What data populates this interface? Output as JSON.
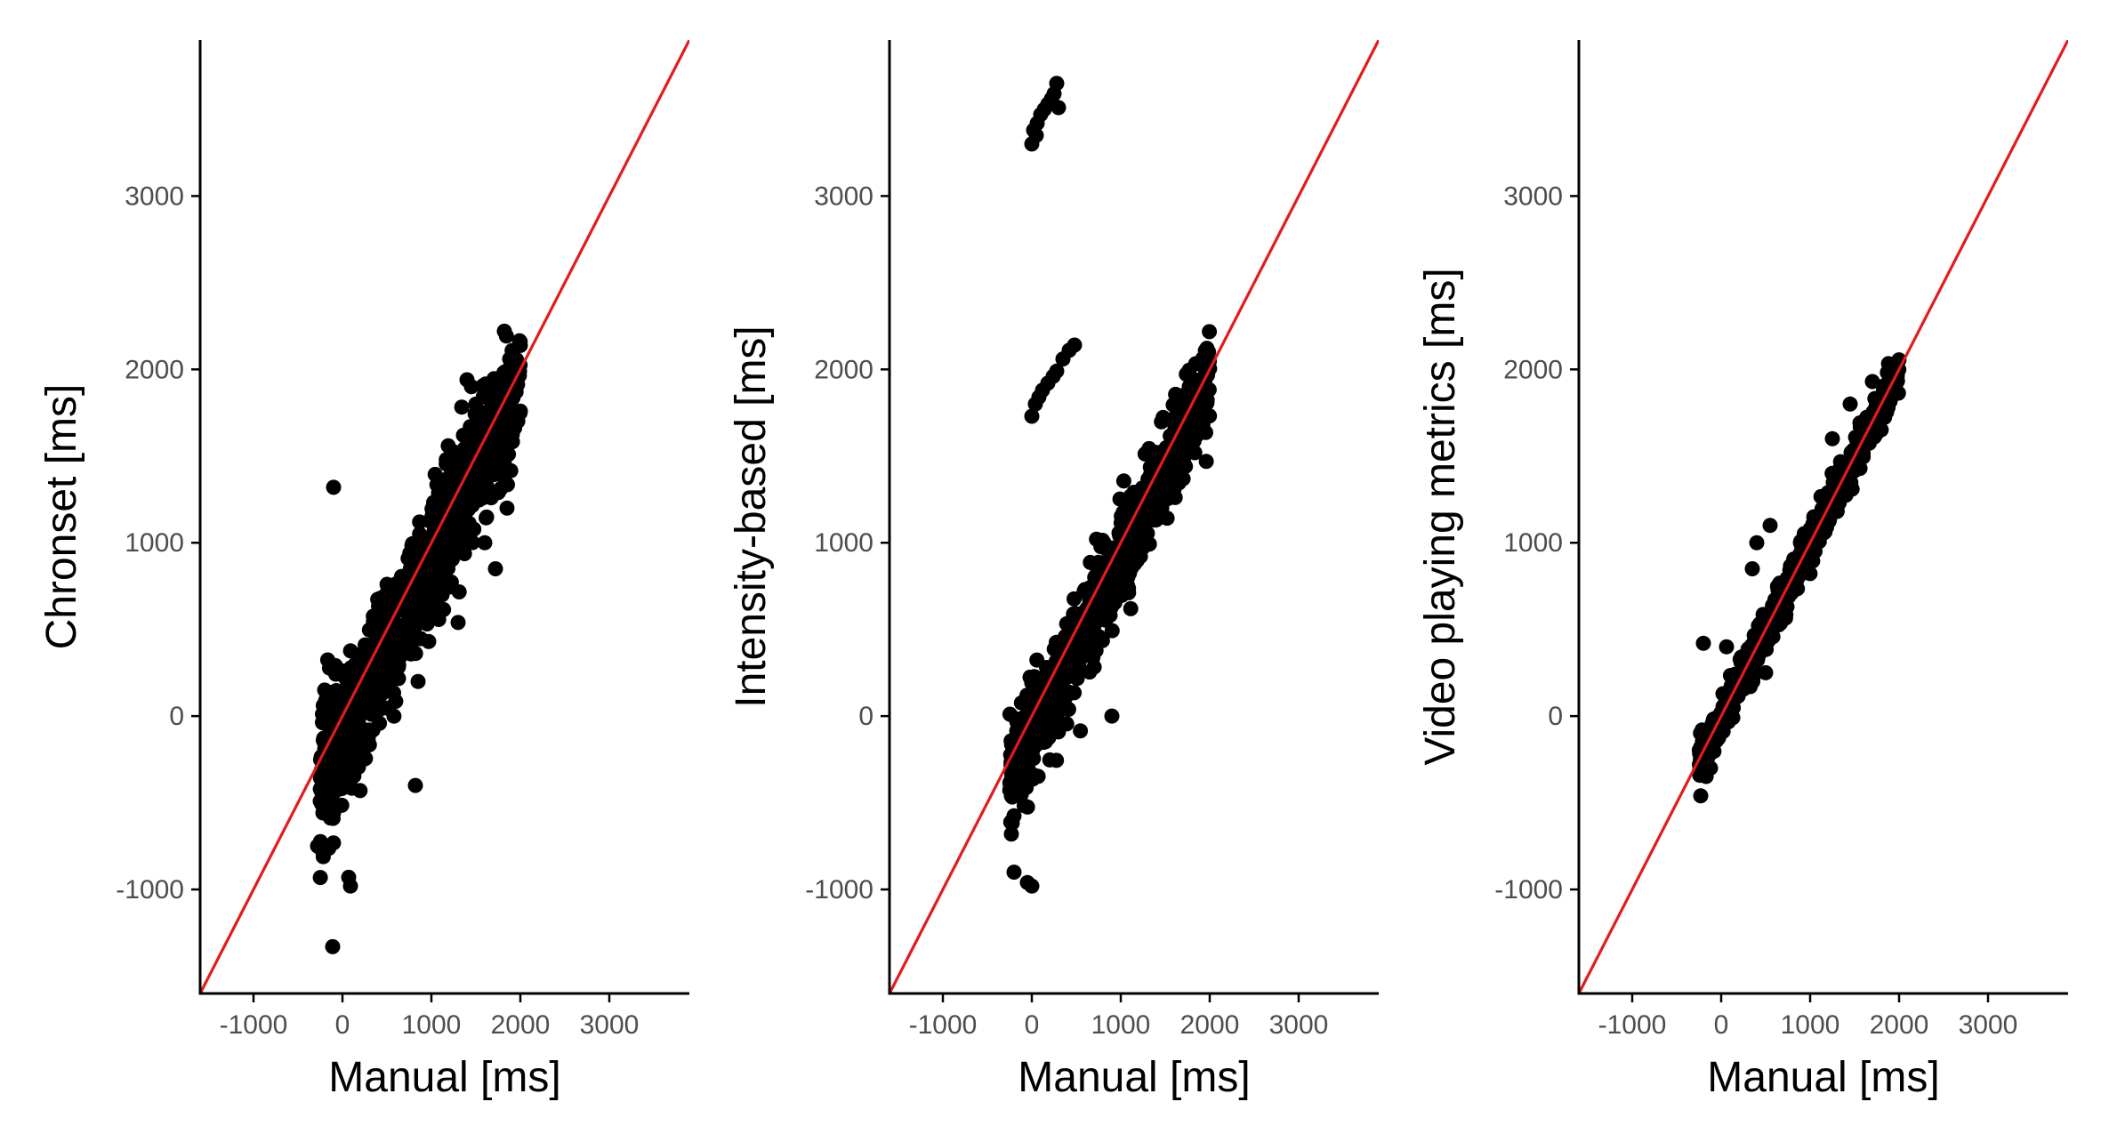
{
  "colors": {
    "points": "#000000",
    "reference_line": "#e41a1c",
    "axis": "#000000",
    "tick_text": "#4d4d4d"
  },
  "chart_data": [
    {
      "type": "scatter",
      "xlabel": "Manual [ms]",
      "ylabel": "Chronset [ms]",
      "xlim": [
        -1600,
        3900
      ],
      "ylim": [
        -1600,
        3900
      ],
      "xticks": [
        -1000,
        0,
        1000,
        2000,
        3000
      ],
      "yticks": [
        -1000,
        0,
        1000,
        2000,
        3000
      ],
      "reference_line": "y = x",
      "grid": false,
      "seed": 11,
      "bulk": {
        "n": 900,
        "x_range": [
          -250,
          2000
        ],
        "slope": 1.0,
        "offset": -60,
        "sd": 180,
        "neg_skew": 260
      },
      "points": [
        [
          -100,
          1320
        ],
        [
          1820,
          2220
        ],
        [
          1880,
          2060
        ],
        [
          -110,
          -1330
        ],
        [
          90,
          -980
        ],
        [
          70,
          -930
        ],
        [
          1850,
          1200
        ],
        [
          1720,
          850
        ],
        [
          1550,
          1550
        ],
        [
          1450,
          1900
        ],
        [
          1400,
          1940
        ],
        [
          1600,
          1000
        ],
        [
          750,
          750
        ],
        [
          820,
          -400
        ],
        [
          300,
          380
        ],
        [
          -200,
          150
        ],
        [
          -250,
          -490
        ],
        [
          1300,
          540
        ],
        [
          1120,
          700
        ],
        [
          1580,
          1750
        ],
        [
          1500,
          1800
        ],
        [
          1940,
          2000
        ],
        [
          1360,
          1620
        ],
        [
          970,
          430
        ],
        [
          850,
          200
        ],
        [
          1150,
          900
        ],
        [
          -280,
          -750
        ]
      ]
    },
    {
      "type": "scatter",
      "xlabel": "Manual [ms]",
      "ylabel": "Intensity-based [ms]",
      "xlim": [
        -1600,
        3900
      ],
      "ylim": [
        -1600,
        3900
      ],
      "xticks": [
        -1000,
        0,
        1000,
        2000,
        3000
      ],
      "yticks": [
        -1000,
        0,
        1000,
        2000,
        3000
      ],
      "reference_line": "y = x",
      "grid": false,
      "seed": 23,
      "bulk": {
        "n": 820,
        "x_range": [
          -250,
          2000
        ],
        "slope": 1.0,
        "offset": -50,
        "sd": 120,
        "neg_skew": 300
      },
      "points": [
        [
          0,
          3300
        ],
        [
          20,
          3380
        ],
        [
          60,
          3420
        ],
        [
          100,
          3470
        ],
        [
          140,
          3500
        ],
        [
          180,
          3530
        ],
        [
          220,
          3560
        ],
        [
          250,
          3590
        ],
        [
          280,
          3650
        ],
        [
          300,
          3510
        ],
        [
          50,
          3350
        ],
        [
          0,
          1730
        ],
        [
          40,
          1800
        ],
        [
          80,
          1840
        ],
        [
          120,
          1880
        ],
        [
          180,
          1920
        ],
        [
          240,
          1960
        ],
        [
          280,
          1990
        ],
        [
          350,
          2060
        ],
        [
          420,
          2110
        ],
        [
          480,
          2140
        ],
        [
          -200,
          -900
        ],
        [
          -50,
          -960
        ],
        [
          0,
          -980
        ],
        [
          900,
          0
        ],
        [
          1300,
          1000
        ],
        [
          1650,
          1550
        ],
        [
          1750,
          1600
        ],
        [
          1800,
          1700
        ],
        [
          1850,
          1750
        ],
        [
          1950,
          2000
        ]
      ]
    },
    {
      "type": "scatter",
      "xlabel": "Manual [ms]",
      "ylabel": "Video playing metrics [ms]",
      "xlim": [
        -1600,
        3900
      ],
      "ylim": [
        -1600,
        3900
      ],
      "xticks": [
        -1000,
        0,
        1000,
        2000,
        3000
      ],
      "yticks": [
        -1000,
        0,
        1000,
        2000,
        3000
      ],
      "reference_line": "y = x",
      "grid": false,
      "seed": 37,
      "bulk": {
        "n": 820,
        "x_range": [
          -250,
          2000
        ],
        "slope": 1.0,
        "offset": 0,
        "sd": 55,
        "neg_skew": 30
      },
      "points": [
        [
          -200,
          420
        ],
        [
          -230,
          -460
        ],
        [
          400,
          1000
        ],
        [
          550,
          1100
        ],
        [
          1250,
          1600
        ],
        [
          1450,
          1800
        ],
        [
          1700,
          1930
        ],
        [
          1950,
          2000
        ],
        [
          350,
          850
        ],
        [
          60,
          400
        ],
        [
          -120,
          -300
        ],
        [
          500,
          250
        ]
      ]
    }
  ]
}
